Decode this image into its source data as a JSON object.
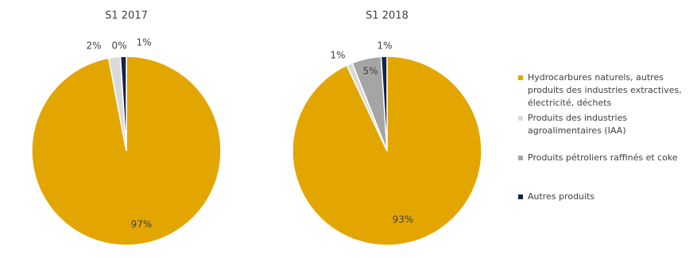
{
  "chart_data": [
    {
      "type": "pie",
      "title": "S1 2017",
      "categories": [
        "Hydrocarbures naturels, autres produits des industries extractives, électricité, déchets",
        "Produits des industries agroalimentaires (IAA)",
        "Produits pétroliers raffinés et coke",
        "Autres produits"
      ],
      "values": [
        97,
        2,
        0,
        1
      ],
      "value_labels": [
        "97%",
        "2%",
        "0%",
        "1%"
      ],
      "colors": [
        "#e3a600",
        "#d9d9d9",
        "#a5a5a5",
        "#13244a"
      ]
    },
    {
      "type": "pie",
      "title": "S1 2018",
      "categories": [
        "Hydrocarbures naturels, autres produits des industries extractives, électricité, déchets",
        "Produits des industries agroalimentaires (IAA)",
        "Produits pétroliers raffinés et coke",
        "Autres produits"
      ],
      "values": [
        93,
        1,
        5,
        1
      ],
      "value_labels": [
        "93%",
        "1%",
        "5%",
        "1%"
      ],
      "colors": [
        "#e3a600",
        "#d9d9d9",
        "#a5a5a5",
        "#13244a"
      ]
    }
  ]
}
